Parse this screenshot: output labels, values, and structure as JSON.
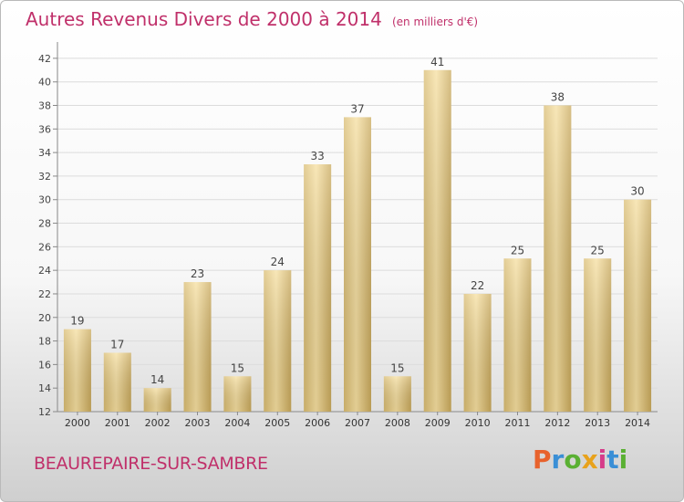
{
  "chart_data": {
    "type": "bar",
    "title": "Autres Revenus Divers de 2000 à 2014",
    "subtitle": "(en milliers d'€)",
    "categories": [
      "2000",
      "2001",
      "2002",
      "2003",
      "2004",
      "2005",
      "2006",
      "2007",
      "2008",
      "2009",
      "2010",
      "2011",
      "2012",
      "2013",
      "2014"
    ],
    "values": [
      19,
      17,
      14,
      23,
      15,
      24,
      33,
      37,
      15,
      41,
      22,
      25,
      38,
      25,
      30
    ],
    "value_labels": [
      "19",
      "17",
      "14",
      "23",
      "15",
      "24",
      "33",
      "37",
      "15",
      "41",
      "22",
      "25",
      "38",
      "25",
      "30"
    ],
    "ylim": [
      12,
      43
    ],
    "yticks": [
      "12",
      "14",
      "16",
      "18",
      "20",
      "22",
      "24",
      "26",
      "28",
      "30",
      "32",
      "34",
      "36",
      "38",
      "40",
      "42"
    ],
    "grid": true,
    "bar_color": "#e9cf86"
  },
  "footer": {
    "city": "BEAUREPAIRE-SUR-SAMBRE",
    "logo": "Proxiti",
    "logo_colors": [
      "#e8622c",
      "#3a8fd6",
      "#5ab033",
      "#e8a21c",
      "#d63c8a",
      "#3a8fd6",
      "#5ab033"
    ]
  }
}
